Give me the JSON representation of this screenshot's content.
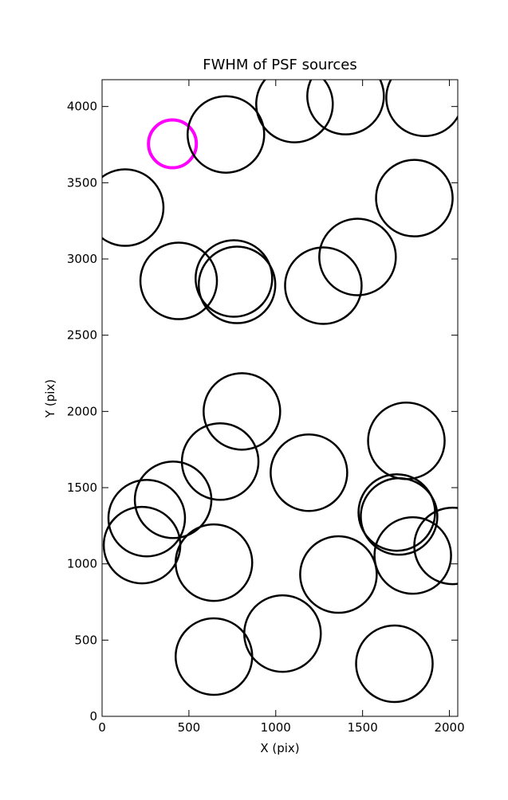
{
  "chart_data": {
    "type": "scatter",
    "title": "FWHM of PSF sources",
    "xlabel": "X (pix)",
    "ylabel": "Y (pix)",
    "series": [
      {
        "color": "#ff00ff",
        "x": [
          405
        ],
        "values": [
          3755
        ]
      },
      {
        "color": "#000000",
        "x": [
          713,
          1108,
          1402,
          1857,
          1798,
          133,
          441,
          759,
          777,
          1471,
          1274,
          805,
          1752,
          680,
          409,
          1191,
          257,
          230,
          644,
          1697,
          1710,
          1789,
          2018,
          1361,
          1039,
          644,
          1683
        ],
        "values": [
          3817,
          4016,
          4068,
          4057,
          3399,
          3337,
          2856,
          2872,
          2830,
          3013,
          2825,
          2000,
          1807,
          1671,
          1420,
          1598,
          1300,
          1123,
          1008,
          1337,
          1311,
          1055,
          1118,
          930,
          543,
          392,
          345
        ]
      }
    ],
    "xlim": [
      0,
      2048
    ],
    "ylim": [
      0,
      4176
    ],
    "xticks": [
      0,
      500,
      1000,
      1500,
      2000
    ],
    "yticks": [
      0,
      500,
      1000,
      1500,
      2000,
      2500,
      3000,
      3500,
      4000
    ]
  }
}
